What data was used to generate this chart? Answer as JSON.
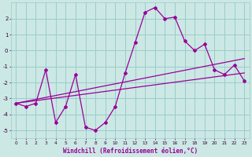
{
  "xlabel": "Windchill (Refroidissement éolien,°C)",
  "background_color": "#cce8e4",
  "grid_color": "#99cccc",
  "line_color": "#990099",
  "spine_color": "#330033",
  "xlim": [
    -0.5,
    23.5
  ],
  "ylim": [
    -5.5,
    3.0
  ],
  "yticks": [
    -5,
    -4,
    -3,
    -2,
    -1,
    0,
    1,
    2
  ],
  "xticks": [
    0,
    1,
    2,
    3,
    4,
    5,
    6,
    7,
    8,
    9,
    10,
    11,
    12,
    13,
    14,
    15,
    16,
    17,
    18,
    19,
    20,
    21,
    22,
    23
  ],
  "hours": [
    0,
    1,
    2,
    3,
    4,
    5,
    6,
    7,
    8,
    9,
    10,
    11,
    12,
    13,
    14,
    15,
    16,
    17,
    18,
    19,
    20,
    21,
    22,
    23
  ],
  "windchill": [
    -3.3,
    -3.5,
    -3.3,
    -1.2,
    -4.5,
    -3.5,
    -1.5,
    -4.8,
    -5.0,
    -4.5,
    -3.5,
    -1.4,
    0.5,
    2.4,
    2.7,
    2.0,
    2.1,
    0.6,
    0.0,
    0.4,
    -1.2,
    -1.5,
    -0.9,
    -1.9
  ],
  "trend1_x": [
    0,
    23
  ],
  "trend1_y": [
    -3.3,
    -0.5
  ],
  "trend2_x": [
    0,
    23
  ],
  "trend2_y": [
    -3.3,
    -1.4
  ]
}
